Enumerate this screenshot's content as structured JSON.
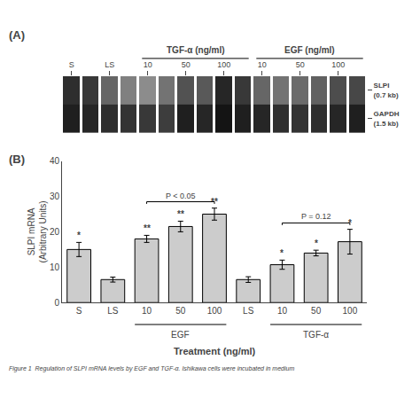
{
  "chart_data": [
    {
      "type": "heatmap",
      "title": "(A)",
      "categories": [
        "S",
        null,
        "LS",
        null,
        "10",
        null,
        "50",
        null,
        "100",
        null,
        "10",
        null,
        "50",
        null,
        "100",
        null
      ],
      "rows": [
        "SLPI\n(0.7 kb)",
        "GAPDH\n(1.5 kb)"
      ],
      "cells": [
        [
          0.82,
          0.78,
          0.6,
          0.5,
          0.45,
          0.55,
          0.68,
          0.65,
          0.85,
          0.78,
          0.6,
          0.55,
          0.58,
          0.62,
          0.7,
          0.72
        ],
        [
          0.88,
          0.85,
          0.82,
          0.8,
          0.78,
          0.76,
          0.88,
          0.85,
          0.92,
          0.88,
          0.85,
          0.82,
          0.8,
          0.82,
          0.85,
          0.88
        ]
      ],
      "zlim": [
        0,
        1
      ],
      "groups": [
        {
          "label": "TGF-α (ng/ml)",
          "from": 4,
          "to": 9
        },
        {
          "label": "EGF (ng/ml)",
          "from": 10,
          "to": 15
        }
      ]
    },
    {
      "type": "bar",
      "title": "(B)",
      "categories": [
        "S",
        "LS",
        "10",
        "50",
        "100",
        "LS",
        "10",
        "50",
        "100"
      ],
      "values": [
        15.0,
        6.5,
        18.0,
        21.5,
        25.0,
        6.5,
        10.7,
        14.0,
        17.2
      ],
      "errors": [
        2.0,
        0.7,
        1.0,
        1.5,
        1.7,
        0.8,
        1.3,
        0.8,
        3.5
      ],
      "color": "#cccccc",
      "edge_color": "#000000",
      "ylim": [
        0,
        40
      ],
      "yticks": [
        0,
        10,
        20,
        30,
        40
      ],
      "ylabel": "SLPI mRNA\n(Arbitrary Units)",
      "xlabel": "Treatment (ng/ml)",
      "grid": false,
      "stars": [
        "*",
        "",
        "**",
        "**",
        "**",
        "",
        "*",
        "*",
        "*"
      ],
      "groups": [
        {
          "label": "EGF",
          "from": 2,
          "to": 4
        },
        {
          "label": "TGF-α",
          "from": 6,
          "to": 8
        }
      ],
      "brackets": [
        {
          "x1": 2,
          "x2": 4,
          "y": 28.5,
          "label": "P < 0.05"
        },
        {
          "x1": 6,
          "x2": 8,
          "y": 22.5,
          "label": "P = 0.12"
        }
      ],
      "annotations": [
        "Figure 1  Regulation of SLPI mRNA levels by EGF and TGF-α. Ishikawa cells were incubated in medium"
      ]
    }
  ]
}
